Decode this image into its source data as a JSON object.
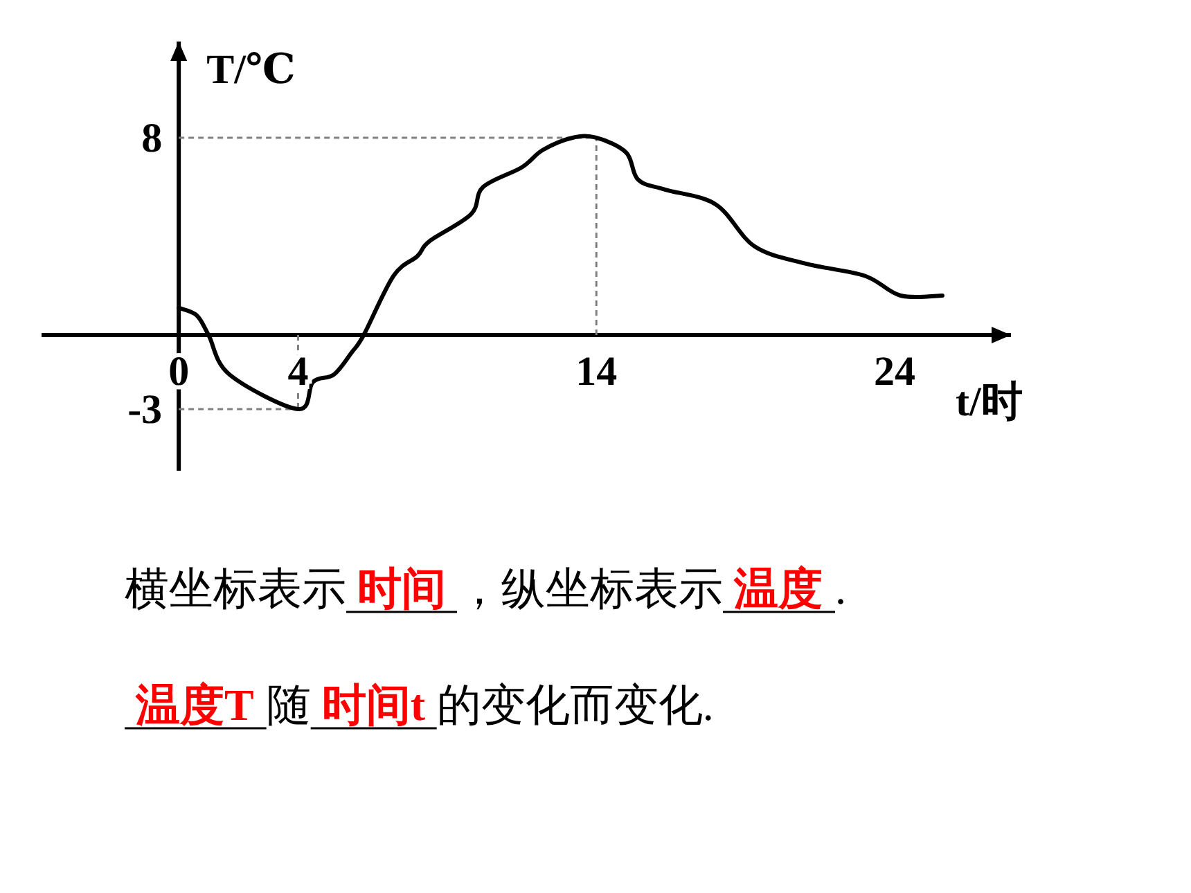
{
  "chart_data": {
    "type": "line",
    "xlabel": "t/时",
    "ylabel": "T/℃",
    "x": [
      0,
      0.6,
      1,
      1.7,
      4,
      4.5,
      5.2,
      5.8,
      6.2,
      7.2,
      8,
      8.4,
      9.8,
      10.2,
      11.5,
      12.2,
      13.2,
      14,
      15,
      15.4,
      16.3,
      18,
      19.3,
      21,
      23,
      24.2,
      25.6
    ],
    "series": [
      {
        "color": "#000000",
        "values": [
          1.1,
          0.8,
          0,
          -1.6,
          -3,
          -1.9,
          -1.6,
          -0.7,
          0,
          2.4,
          3.2,
          3.8,
          4.9,
          6,
          6.8,
          7.5,
          8,
          8,
          7.4,
          6.3,
          5.9,
          5.3,
          3.6,
          2.9,
          2.4,
          1.6,
          1.6
        ]
      }
    ],
    "xlim": [
      -4.6,
      27.9
    ],
    "ylim": [
      -5.5,
      11.9
    ],
    "xticks": [
      0,
      4,
      14,
      24
    ],
    "yticks": [
      -3,
      8
    ],
    "ref_lines": [
      {
        "axis": "y",
        "value": 8,
        "color": "#808080",
        "line_style": "dashed"
      },
      {
        "axis": "x",
        "value": 14,
        "color": "#808080",
        "line_style": "dashed"
      },
      {
        "axis": "y",
        "value": -3,
        "color": "#808080",
        "line_style": "dashed"
      },
      {
        "axis": "x",
        "value": 4,
        "color": "#808080",
        "line_style": "dashed"
      }
    ],
    "annotations": [
      "横坐标表示",
      "时间",
      "，纵坐标表示",
      "温度",
      ".",
      "温度T",
      "随",
      "时间t",
      "的变化而变化."
    ]
  }
}
